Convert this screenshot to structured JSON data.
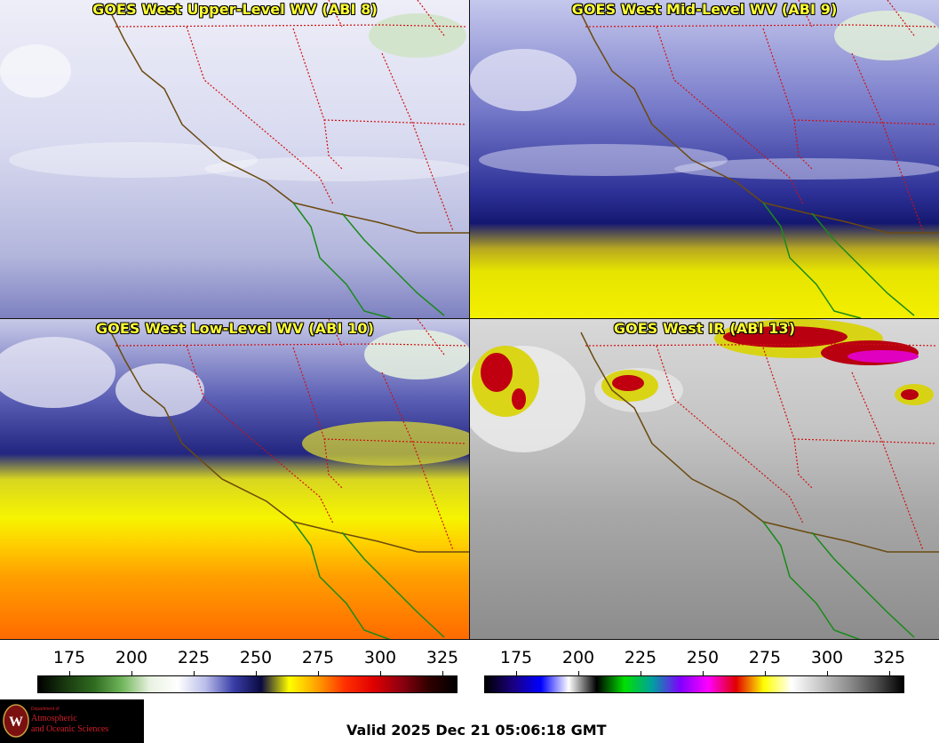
{
  "panels": [
    {
      "title": "GOES West Upper-Level WV (ABI 8)"
    },
    {
      "title": "GOES West Mid-Level WV (ABI 9)"
    },
    {
      "title": "GOES West Low-Level WV (ABI 10)"
    },
    {
      "title": "GOES West IR (ABI 13)"
    }
  ],
  "colorbars": [
    {
      "name": "water-vapor",
      "tick_labels": [
        "175",
        "200",
        "225",
        "250",
        "275",
        "300",
        "325"
      ],
      "colors": [
        "#000000",
        "#1a3a10",
        "#2f6b20",
        "#6fb55a",
        "#e8f2e0",
        "#ffffff",
        "#b9bde8",
        "#3a3ea8",
        "#0a0a40",
        "#ffff00",
        "#ffa000",
        "#ff3000",
        "#e00000",
        "#900010",
        "#300000",
        "#000000"
      ]
    },
    {
      "name": "infrared",
      "tick_labels": [
        "175",
        "200",
        "225",
        "250",
        "275",
        "300",
        "325"
      ],
      "colors": [
        "#000000",
        "#1a0080",
        "#0000ff",
        "#ffffff",
        "#000000",
        "#00e000",
        "#00a0a0",
        "#8000ff",
        "#ff00ff",
        "#e00000",
        "#ffff00",
        "#ffffff",
        "#c8c8c8",
        "#909090",
        "#505050",
        "#000000"
      ]
    }
  ],
  "logo": {
    "dept": "Department of",
    "line1": "Atmospheric",
    "line2": "and Oceanic Sciences",
    "letter": "W"
  },
  "valid_time": "Valid 2025 Dec 21 05:06:18 GMT"
}
